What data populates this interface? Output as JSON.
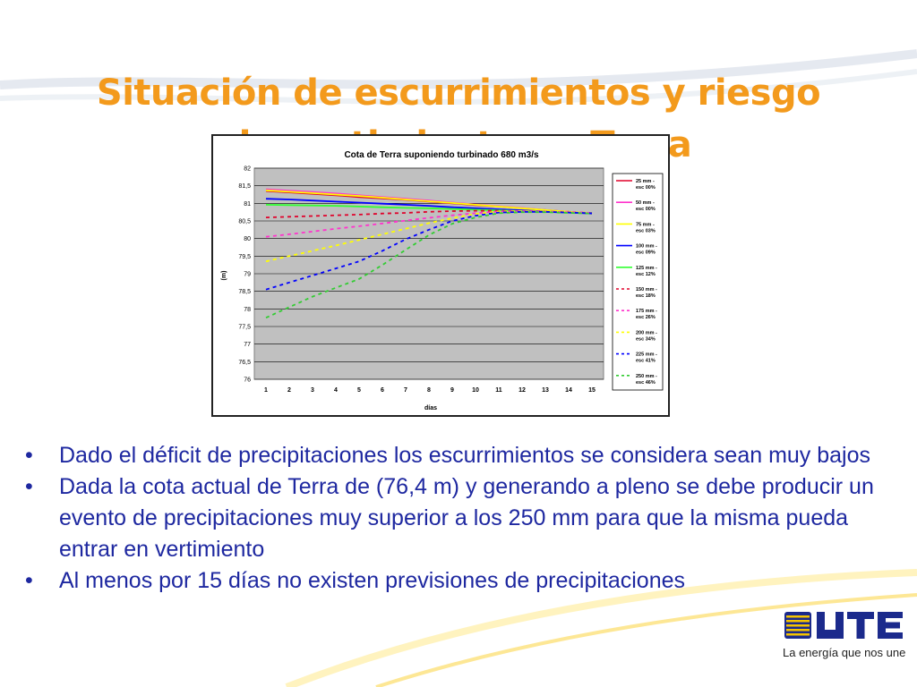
{
  "slide": {
    "title_lines": [
      "Situación de escurrimientos y riesgo",
      "de vertimiento en Terra"
    ],
    "bullets": [
      "Dado el déficit de precipitaciones los escurrimientos se considera sean muy bajos",
      "Dada la cota actual de Terra de (76,4 m) y generando a pleno se debe producir un evento de precipitaciones muy superior a los 250 mm para que la misma pueda entrar en vertimiento",
      "Al menos por 15 días no existen previsiones de precipitaciones"
    ],
    "bullet_glyph": "•",
    "logo": {
      "text": "UTE",
      "tagline": "La energía que nos une",
      "colors": {
        "blue": "#1b2a8c",
        "yellow": "#f5c400"
      }
    },
    "colors": {
      "title": "#f39a1c",
      "body": "#1e28a0"
    }
  },
  "chart_data": {
    "type": "line",
    "title": "Cota de Terra suponiendo turbinado 680 m3/s",
    "xlabel": "días",
    "ylabel": "(m)",
    "x": [
      1,
      2,
      3,
      4,
      5,
      6,
      7,
      8,
      9,
      10,
      11,
      12,
      13,
      14,
      15
    ],
    "ylim": [
      76,
      82
    ],
    "yticks": [
      "76",
      "76,5",
      "77",
      "77,5",
      "78",
      "78,5",
      "79",
      "79,5",
      "80",
      "80,5",
      "81",
      "81,5",
      "82"
    ],
    "grid": true,
    "legend_position": "right",
    "series": [
      {
        "name": "25 mm - esc 00%",
        "color": "#e0002a",
        "dash": false,
        "values": [
          81.35,
          81.31,
          81.27,
          81.23,
          81.18,
          81.14,
          81.1,
          81.05,
          81.0,
          80.95,
          80.91,
          80.86,
          80.81,
          80.76,
          80.71
        ]
      },
      {
        "name": "50 mm - esc 00%",
        "color": "#ff33cc",
        "dash": false,
        "values": [
          81.4,
          81.36,
          81.32,
          81.28,
          81.23,
          81.18,
          81.13,
          81.08,
          81.02,
          80.97,
          80.92,
          80.87,
          80.81,
          80.76,
          80.71
        ]
      },
      {
        "name": "75 mm - esc 03%",
        "color": "#ffff00",
        "dash": false,
        "values": [
          81.37,
          81.33,
          81.29,
          81.25,
          81.21,
          81.16,
          81.11,
          81.06,
          81.01,
          80.96,
          80.91,
          80.86,
          80.81,
          80.76,
          80.71
        ]
      },
      {
        "name": "100 mm - esc 09%",
        "color": "#0000ff",
        "dash": false,
        "values": [
          81.13,
          81.11,
          81.08,
          81.05,
          81.02,
          80.99,
          80.96,
          80.93,
          80.89,
          80.86,
          80.83,
          80.8,
          80.77,
          80.74,
          80.71
        ]
      },
      {
        "name": "125 mm - esc 12%",
        "color": "#33ff33",
        "dash": false,
        "values": [
          80.96,
          80.95,
          80.94,
          80.93,
          80.91,
          80.89,
          80.87,
          80.86,
          80.84,
          80.82,
          80.8,
          80.78,
          80.76,
          80.74,
          80.72
        ]
      },
      {
        "name": "150 mm - esc 18%",
        "color": "#e0002a",
        "dash": true,
        "values": [
          80.6,
          80.62,
          80.64,
          80.66,
          80.68,
          80.71,
          80.73,
          80.76,
          80.78,
          80.79,
          80.79,
          80.78,
          80.77,
          80.75,
          80.73
        ]
      },
      {
        "name": "175 mm - esc 26%",
        "color": "#ff33cc",
        "dash": true,
        "values": [
          80.05,
          80.12,
          80.2,
          80.28,
          80.35,
          80.43,
          80.51,
          80.59,
          80.66,
          80.72,
          80.77,
          80.78,
          80.77,
          80.75,
          80.73
        ]
      },
      {
        "name": "200 mm - esc 34%",
        "color": "#ffff00",
        "dash": true,
        "values": [
          79.35,
          79.5,
          79.65,
          79.8,
          79.96,
          80.12,
          80.28,
          80.44,
          80.58,
          80.7,
          80.77,
          80.78,
          80.77,
          80.75,
          80.73
        ]
      },
      {
        "name": "225 mm - esc 41%",
        "color": "#0000ff",
        "dash": true,
        "values": [
          78.55,
          78.75,
          78.95,
          79.15,
          79.35,
          79.65,
          79.98,
          80.25,
          80.5,
          80.65,
          80.74,
          80.76,
          80.76,
          80.74,
          80.72
        ]
      },
      {
        "name": "250 mm - esc 46%",
        "color": "#33cc33",
        "dash": true,
        "values": [
          77.75,
          78.05,
          78.35,
          78.6,
          78.85,
          79.25,
          79.68,
          80.1,
          80.42,
          80.6,
          80.72,
          80.75,
          80.75,
          80.73,
          80.71
        ]
      }
    ]
  }
}
